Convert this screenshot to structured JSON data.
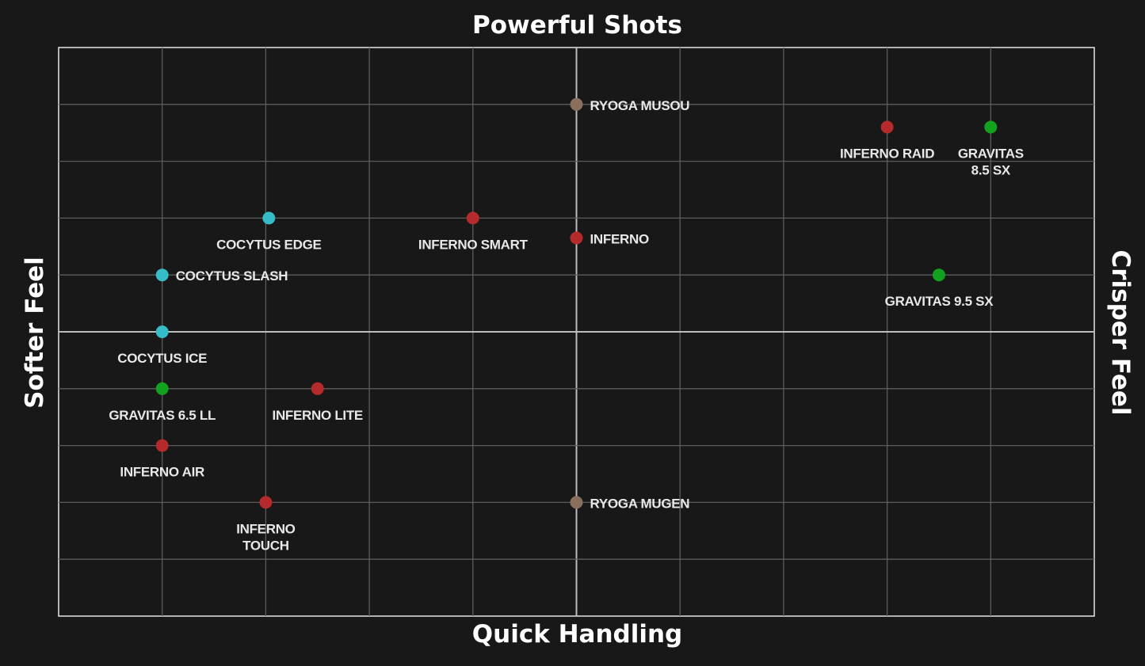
{
  "chart_data": {
    "type": "scatter",
    "title_top": "Powerful Shots",
    "xlabel": "Quick Handling",
    "ylabel_left": "Softer Feel",
    "ylabel_right": "Crisper Feel",
    "xlim": [
      -5,
      5
    ],
    "ylim": [
      -5,
      5
    ],
    "grid": true,
    "colors": {
      "inferno": "#b52a2a",
      "gravitas": "#13a21f",
      "cocytus": "#35bcc6",
      "ryoga": "#8a705c"
    },
    "points": [
      {
        "label": [
          "RYOGA MUSOU"
        ],
        "x": 0,
        "y": 4,
        "family": "ryoga",
        "label_position": "right"
      },
      {
        "label": [
          "INFERNO RAID"
        ],
        "x": 3,
        "y": 3.6,
        "family": "inferno",
        "label_position": "below"
      },
      {
        "label": [
          "GRAVITAS",
          "8.5 SX"
        ],
        "x": 4,
        "y": 3.6,
        "family": "gravitas",
        "label_position": "below"
      },
      {
        "label": [
          "COCYTUS EDGE"
        ],
        "x": -2.97,
        "y": 2,
        "family": "cocytus",
        "label_position": "below"
      },
      {
        "label": [
          "INFERNO SMART"
        ],
        "x": -1,
        "y": 2,
        "family": "inferno",
        "label_position": "below"
      },
      {
        "label": [
          "INFERNO"
        ],
        "x": 0,
        "y": 1.65,
        "family": "inferno",
        "label_position": "right"
      },
      {
        "label": [
          "COCYTUS SLASH"
        ],
        "x": -4,
        "y": 1,
        "family": "cocytus",
        "label_position": "right"
      },
      {
        "label": [
          "GRAVITAS 9.5 SX"
        ],
        "x": 3.5,
        "y": 1,
        "family": "gravitas",
        "label_position": "below"
      },
      {
        "label": [
          "COCYTUS ICE"
        ],
        "x": -4,
        "y": 0,
        "family": "cocytus",
        "label_position": "below"
      },
      {
        "label": [
          "GRAVITAS 6.5 LL"
        ],
        "x": -4,
        "y": -1,
        "family": "gravitas",
        "label_position": "below"
      },
      {
        "label": [
          "INFERNO LITE"
        ],
        "x": -2.5,
        "y": -1,
        "family": "inferno",
        "label_position": "below"
      },
      {
        "label": [
          "INFERNO AIR"
        ],
        "x": -4,
        "y": -2,
        "family": "inferno",
        "label_position": "below"
      },
      {
        "label": [
          "INFERNO",
          "TOUCH"
        ],
        "x": -3,
        "y": -3,
        "family": "inferno",
        "label_position": "below"
      },
      {
        "label": [
          "RYOGA MUGEN"
        ],
        "x": 0,
        "y": -3,
        "family": "ryoga",
        "label_position": "right"
      }
    ]
  }
}
